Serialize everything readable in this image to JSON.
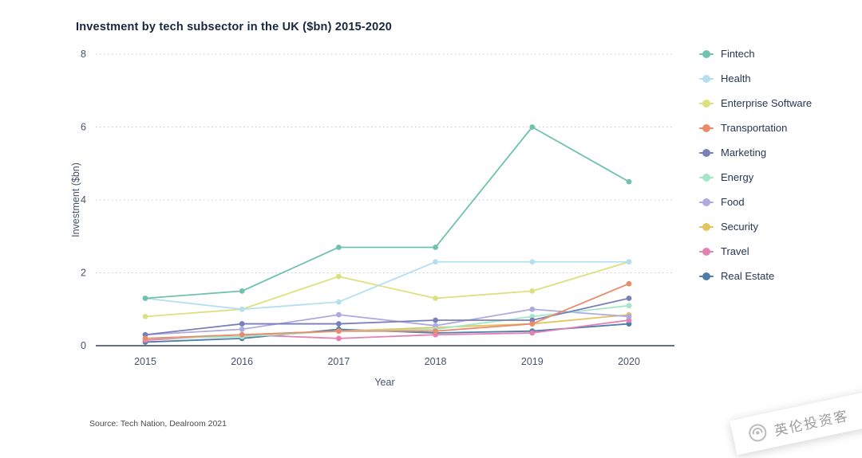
{
  "page": {
    "title": "Investment by tech subsector in the UK ($bn) 2015-2020",
    "source": "Source: Tech Nation, Dealroom 2021",
    "watermark": "英伦投资客"
  },
  "chart_data": {
    "type": "line",
    "title": "Investment by tech subsector in the UK ($bn) 2015-2020",
    "xlabel": "Year",
    "ylabel": "Investment ($bn)",
    "x": [
      "2015",
      "2016",
      "2017",
      "2018",
      "2019",
      "2020"
    ],
    "ylim": [
      0,
      8
    ],
    "y_ticks": [
      0,
      2,
      4,
      6,
      8
    ],
    "grid": "dotted-horizontal",
    "legend_position": "right",
    "series": [
      {
        "name": "Fintech",
        "color": "#6fc2ae",
        "values": [
          1.3,
          1.5,
          2.7,
          2.7,
          6.0,
          4.5
        ]
      },
      {
        "name": "Health",
        "color": "#b5dff0",
        "values": [
          1.3,
          1.0,
          1.2,
          2.3,
          2.3,
          2.3
        ]
      },
      {
        "name": "Enterprise Software",
        "color": "#dde07e",
        "values": [
          0.8,
          1.0,
          1.9,
          1.3,
          1.5,
          2.3
        ]
      },
      {
        "name": "Transportation",
        "color": "#e78d6c",
        "values": [
          0.2,
          0.3,
          0.4,
          0.4,
          0.6,
          1.7
        ]
      },
      {
        "name": "Marketing",
        "color": "#7a7fba",
        "values": [
          0.3,
          0.6,
          0.6,
          0.7,
          0.7,
          1.3
        ]
      },
      {
        "name": "Energy",
        "color": "#a4e6c8",
        "values": [
          0.2,
          0.25,
          0.4,
          0.45,
          0.8,
          1.1
        ]
      },
      {
        "name": "Food",
        "color": "#aeaade",
        "values": [
          0.3,
          0.45,
          0.85,
          0.55,
          1.0,
          0.8
        ]
      },
      {
        "name": "Security",
        "color": "#e2c45f",
        "values": [
          0.2,
          0.3,
          0.4,
          0.5,
          0.6,
          0.85
        ]
      },
      {
        "name": "Travel",
        "color": "#e480b2",
        "values": [
          0.15,
          0.3,
          0.2,
          0.3,
          0.35,
          0.7
        ]
      },
      {
        "name": "Real Estate",
        "color": "#4f7ca8",
        "values": [
          0.1,
          0.2,
          0.45,
          0.35,
          0.4,
          0.6
        ]
      }
    ]
  }
}
